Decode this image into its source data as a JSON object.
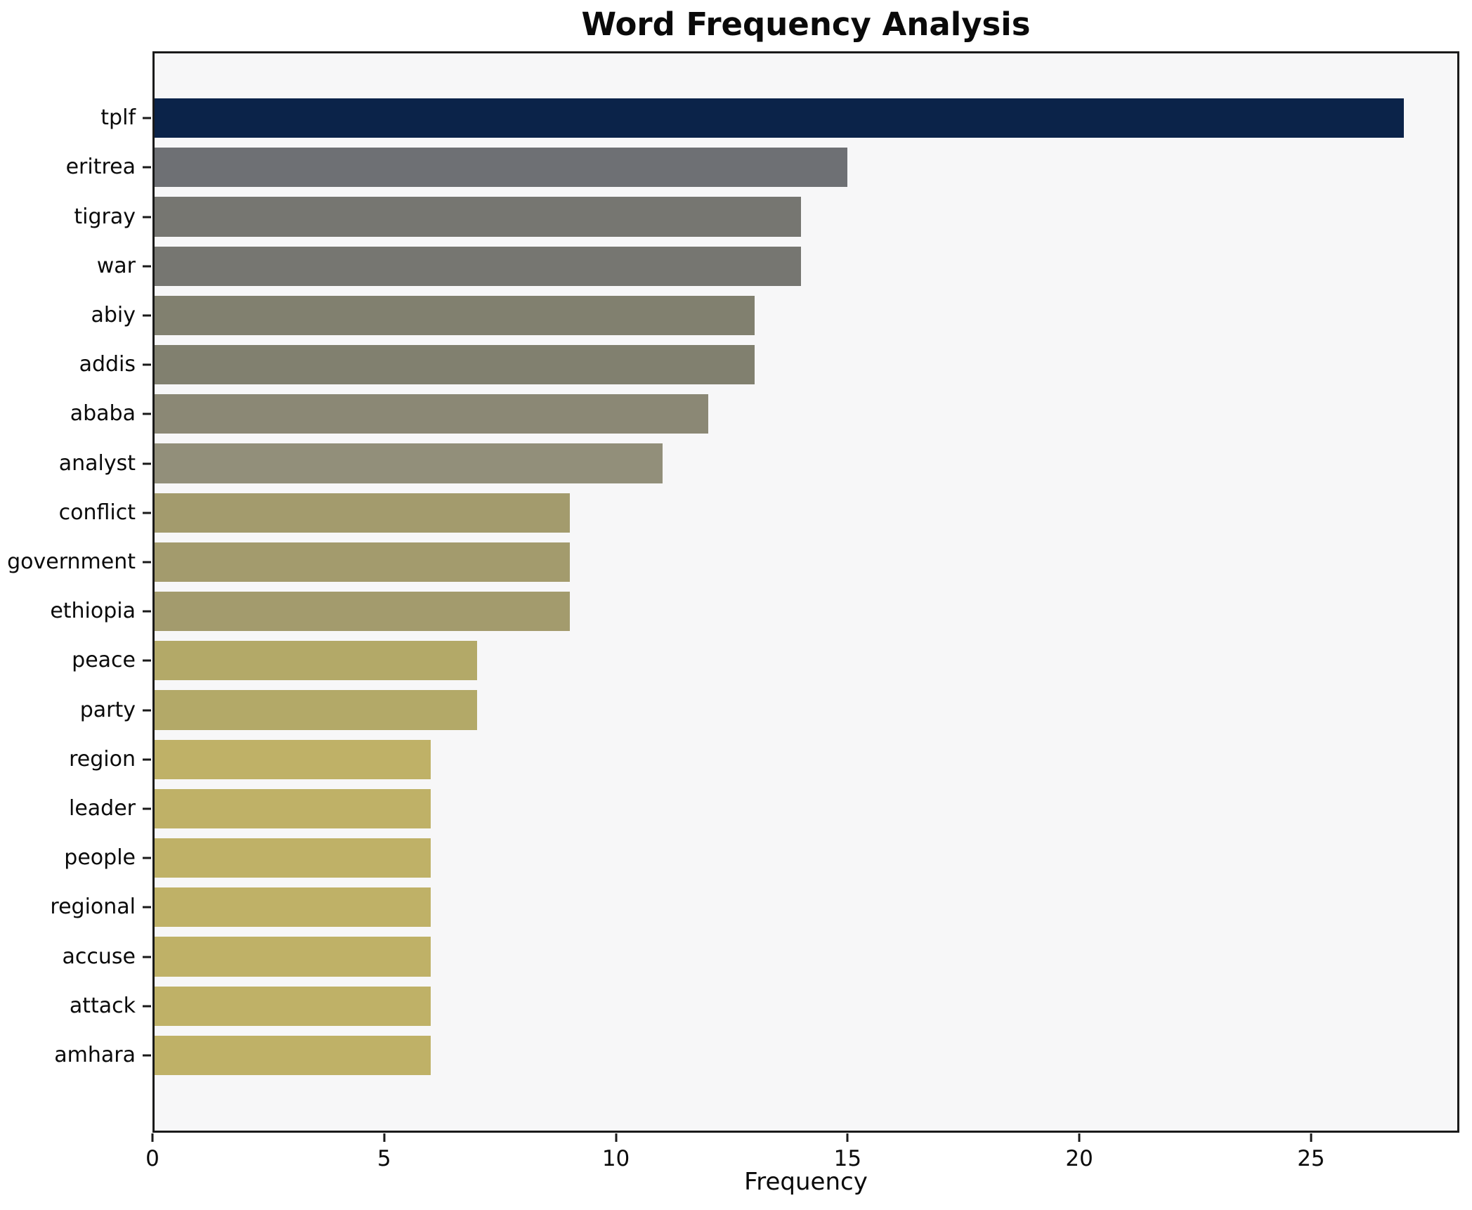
{
  "chart_data": {
    "type": "bar",
    "orientation": "horizontal",
    "title": "Word Frequency Analysis",
    "xlabel": "Frequency",
    "ylabel": "",
    "categories": [
      "tplf",
      "eritrea",
      "tigray",
      "war",
      "abiy",
      "addis",
      "ababa",
      "analyst",
      "conflict",
      "government",
      "ethiopia",
      "peace",
      "party",
      "region",
      "leader",
      "people",
      "regional",
      "accuse",
      "attack",
      "amhara"
    ],
    "values": [
      27,
      15,
      14,
      14,
      13,
      13,
      12,
      11,
      9,
      9,
      9,
      7,
      7,
      6,
      6,
      6,
      6,
      6,
      6,
      6
    ],
    "bar_colors": [
      "#0b2349",
      "#6e7074",
      "#767671",
      "#767671",
      "#81806f",
      "#81806f",
      "#8b8875",
      "#928f7a",
      "#a39b6d",
      "#a39b6d",
      "#a39b6d",
      "#b3a968",
      "#b3a968",
      "#bfb167",
      "#bfb167",
      "#bfb167",
      "#bfb167",
      "#bfb167",
      "#bfb167",
      "#bfb167"
    ],
    "xlim": [
      0,
      28.2
    ],
    "xticks": [
      0,
      5,
      10,
      15,
      20,
      25
    ],
    "grid": false,
    "legend": null,
    "plot_bg": "#f7f7f8",
    "fig_bg": "#ffffff",
    "spine_color": "#1a1a1a"
  }
}
